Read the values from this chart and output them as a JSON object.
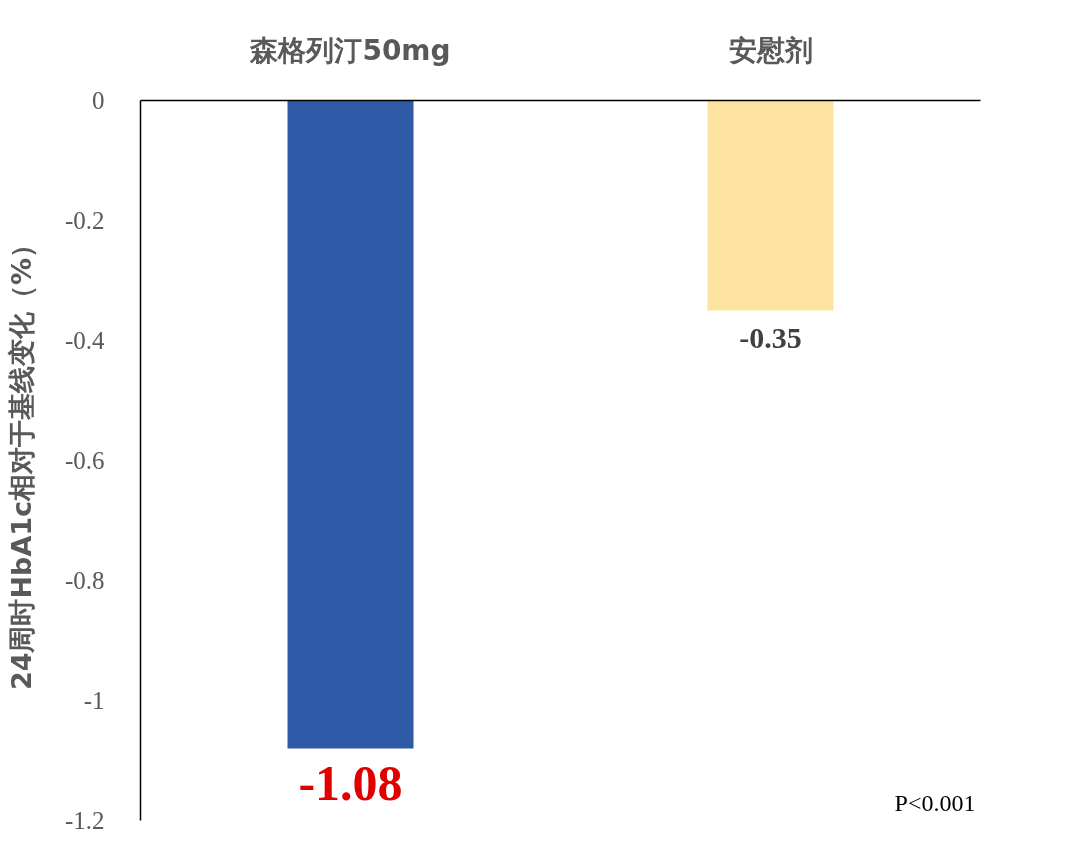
{
  "chart_data": {
    "type": "bar",
    "ylabel": "24周时HbA1c相对于基线变化（%）",
    "categories": [
      "森格列汀50mg",
      "安慰剂"
    ],
    "values": [
      -1.08,
      -0.35
    ],
    "colors": [
      "#2f5aa8",
      "#fde3a0"
    ],
    "value_labels": [
      "-1.08",
      "-0.35"
    ],
    "ylim": [
      -1.2,
      0
    ],
    "yticks": [
      0,
      -0.2,
      -0.4,
      -0.6,
      -0.8,
      -1,
      -1.2
    ],
    "annotations": [
      "P<0.001"
    ],
    "grid": false
  }
}
